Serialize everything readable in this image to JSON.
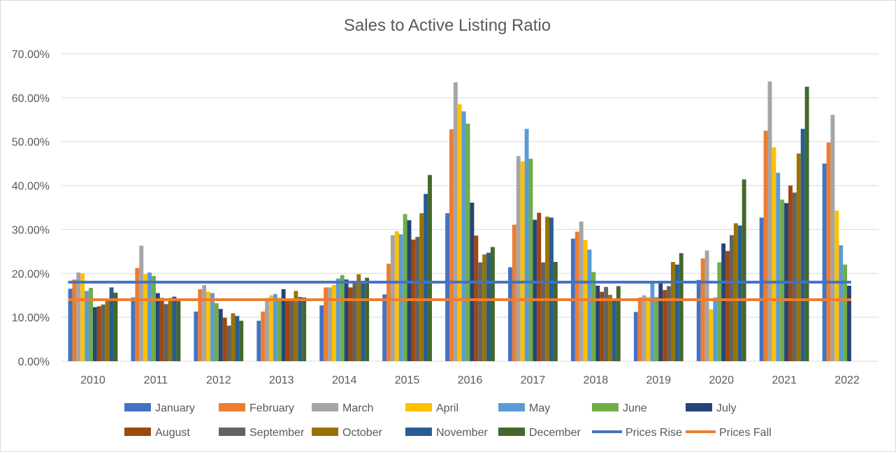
{
  "chart_data": {
    "type": "bar",
    "title": "Sales to Active Listing Ratio",
    "xlabel": "",
    "ylabel": "",
    "ylim": [
      0,
      0.7
    ],
    "y_ticks": [
      "0.00%",
      "10.00%",
      "20.00%",
      "30.00%",
      "40.00%",
      "50.00%",
      "60.00%",
      "70.00%"
    ],
    "grid": true,
    "legend_position": "bottom",
    "categories": [
      "2010",
      "2011",
      "2012",
      "2013",
      "2014",
      "2015",
      "2016",
      "2017",
      "2018",
      "2019",
      "2020",
      "2021",
      "2022"
    ],
    "series": [
      {
        "name": "January",
        "color": "#4472c4",
        "values": [
          16.5,
          14.5,
          11.3,
          9.2,
          12.7,
          15.2,
          33.7,
          21.4,
          27.9,
          11.2,
          18.5,
          32.7,
          45.0
        ]
      },
      {
        "name": "February",
        "color": "#ed7d31",
        "values": [
          18.6,
          21.2,
          16.4,
          11.3,
          16.8,
          22.2,
          52.8,
          31.1,
          29.5,
          14.5,
          23.4,
          52.5,
          49.8
        ]
      },
      {
        "name": "March",
        "color": "#a5a5a5",
        "values": [
          20.2,
          26.3,
          17.3,
          14.4,
          16.8,
          28.7,
          63.5,
          46.7,
          31.8,
          15.0,
          25.2,
          63.7,
          56.1
        ]
      },
      {
        "name": "April",
        "color": "#ffc000",
        "values": [
          20.0,
          19.8,
          15.8,
          15.0,
          17.4,
          29.6,
          58.5,
          45.5,
          27.6,
          14.6,
          11.8,
          48.7,
          34.3
        ]
      },
      {
        "name": "May",
        "color": "#5b9bd5",
        "values": [
          16.0,
          20.2,
          15.5,
          15.3,
          18.8,
          28.9,
          56.9,
          52.9,
          25.4,
          18.1,
          14.5,
          42.9,
          26.4
        ]
      },
      {
        "name": "June",
        "color": "#70ad47",
        "values": [
          16.7,
          19.4,
          13.2,
          14.4,
          19.6,
          33.5,
          54.1,
          46.1,
          20.3,
          14.6,
          22.5,
          36.8,
          22.0
        ]
      },
      {
        "name": "July",
        "color": "#264478",
        "values": [
          12.3,
          15.5,
          11.9,
          16.4,
          18.6,
          32.1,
          36.1,
          32.2,
          17.2,
          17.8,
          26.8,
          36.0,
          17.2
        ]
      },
      {
        "name": "August",
        "color": "#9e480e",
        "values": [
          12.5,
          14.4,
          9.9,
          14.1,
          16.8,
          27.7,
          28.6,
          33.8,
          15.8,
          16.2,
          25.1,
          40.0,
          null
        ]
      },
      {
        "name": "September",
        "color": "#636363",
        "values": [
          12.9,
          13.0,
          8.1,
          14.3,
          17.7,
          28.3,
          22.5,
          22.5,
          16.9,
          17.1,
          28.7,
          38.4,
          null
        ]
      },
      {
        "name": "October",
        "color": "#997300",
        "values": [
          14.0,
          14.4,
          10.9,
          16.0,
          19.8,
          33.7,
          24.3,
          32.9,
          15.1,
          22.6,
          31.4,
          47.3,
          null
        ]
      },
      {
        "name": "November",
        "color": "#255e91",
        "values": [
          16.8,
          14.7,
          10.3,
          14.6,
          17.7,
          38.1,
          24.7,
          32.7,
          13.7,
          22.0,
          30.9,
          52.9,
          null
        ]
      },
      {
        "name": "December",
        "color": "#43682b",
        "values": [
          15.6,
          14.2,
          9.2,
          14.5,
          19.0,
          42.4,
          26.0,
          22.6,
          17.1,
          24.6,
          41.4,
          62.5,
          null
        ]
      }
    ],
    "reference_lines": [
      {
        "name": "Prices Rise",
        "color": "#4472c4",
        "value": 18.0
      },
      {
        "name": "Prices Fall",
        "color": "#ed7d31",
        "value": 14.0
      }
    ]
  }
}
